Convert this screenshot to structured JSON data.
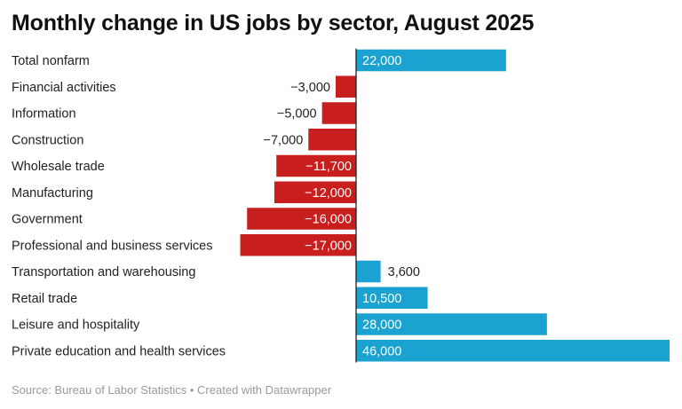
{
  "chart_data": {
    "type": "bar",
    "orientation": "horizontal",
    "title": "Monthly change in US jobs by sector, August 2025",
    "categories": [
      "Total nonfarm",
      "Financial activities",
      "Information",
      "Construction",
      "Wholesale trade",
      "Manufacturing",
      "Government",
      "Professional and business services",
      "Transportation and warehousing",
      "Retail trade",
      "Leisure and hospitality",
      "Private education and health services"
    ],
    "values": [
      22000,
      -3000,
      -5000,
      -7000,
      -11700,
      -12000,
      -16000,
      -17000,
      3600,
      10500,
      28000,
      46000
    ],
    "value_labels": [
      "22,000",
      "−3,000",
      "−5,000",
      "−7,000",
      "−11,700",
      "−12,000",
      "−16,000",
      "−17,000",
      "3,600",
      "10,500",
      "28,000",
      "46,000"
    ],
    "xlim": [
      -17000,
      46000
    ],
    "colors": {
      "positive": "#1aa3d0",
      "negative": "#c81e1e"
    },
    "xlabel": "",
    "ylabel": "",
    "grid": false
  },
  "footer": "Source: Bureau of Labor Statistics • Created with Datawrapper"
}
